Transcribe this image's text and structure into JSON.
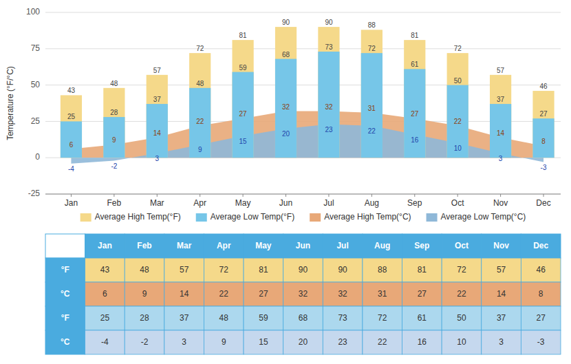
{
  "chart_data": {
    "type": "bar",
    "categories": [
      "Jan",
      "Feb",
      "Mar",
      "Apr",
      "May",
      "Jun",
      "Jul",
      "Aug",
      "Sep",
      "Oct",
      "Nov",
      "Dec"
    ],
    "series": [
      {
        "name": "Average High Temp(°F)",
        "type": "bar",
        "color": "#F5D98A",
        "values": [
          43,
          48,
          57,
          72,
          81,
          90,
          90,
          88,
          81,
          72,
          57,
          46
        ]
      },
      {
        "name": "Average Low Temp(°F)",
        "type": "bar",
        "color": "#76C6E8",
        "values": [
          25,
          28,
          37,
          48,
          59,
          68,
          73,
          72,
          61,
          50,
          37,
          27
        ]
      },
      {
        "name": "Average High Temp(°C)",
        "type": "area",
        "color": "#E8A878",
        "values": [
          6,
          9,
          14,
          22,
          27,
          32,
          32,
          31,
          27,
          22,
          14,
          8
        ]
      },
      {
        "name": "Average Low Temp(°C)",
        "type": "area",
        "color": "#8FB8D8",
        "values": [
          -4,
          -2,
          3,
          9,
          15,
          20,
          23,
          22,
          16,
          10,
          3,
          -3
        ]
      }
    ],
    "y_label": "Temperature (°F/°C)",
    "ylim": [
      -25,
      100
    ],
    "yticks": [
      -25,
      0,
      25,
      50,
      75,
      100
    ],
    "grid": true,
    "legend": "bottom",
    "data_labels": true,
    "table": {
      "header_color": "#4AABDF",
      "rows": [
        {
          "label": "°F",
          "series": 0,
          "color": "#F5D98A"
        },
        {
          "label": "°C",
          "series": 2,
          "color": "#E8A878"
        },
        {
          "label": "°F",
          "series": 1,
          "color": "#ACD8EE"
        },
        {
          "label": "°C",
          "series": 3,
          "color": "#C5D8EE"
        }
      ]
    }
  }
}
